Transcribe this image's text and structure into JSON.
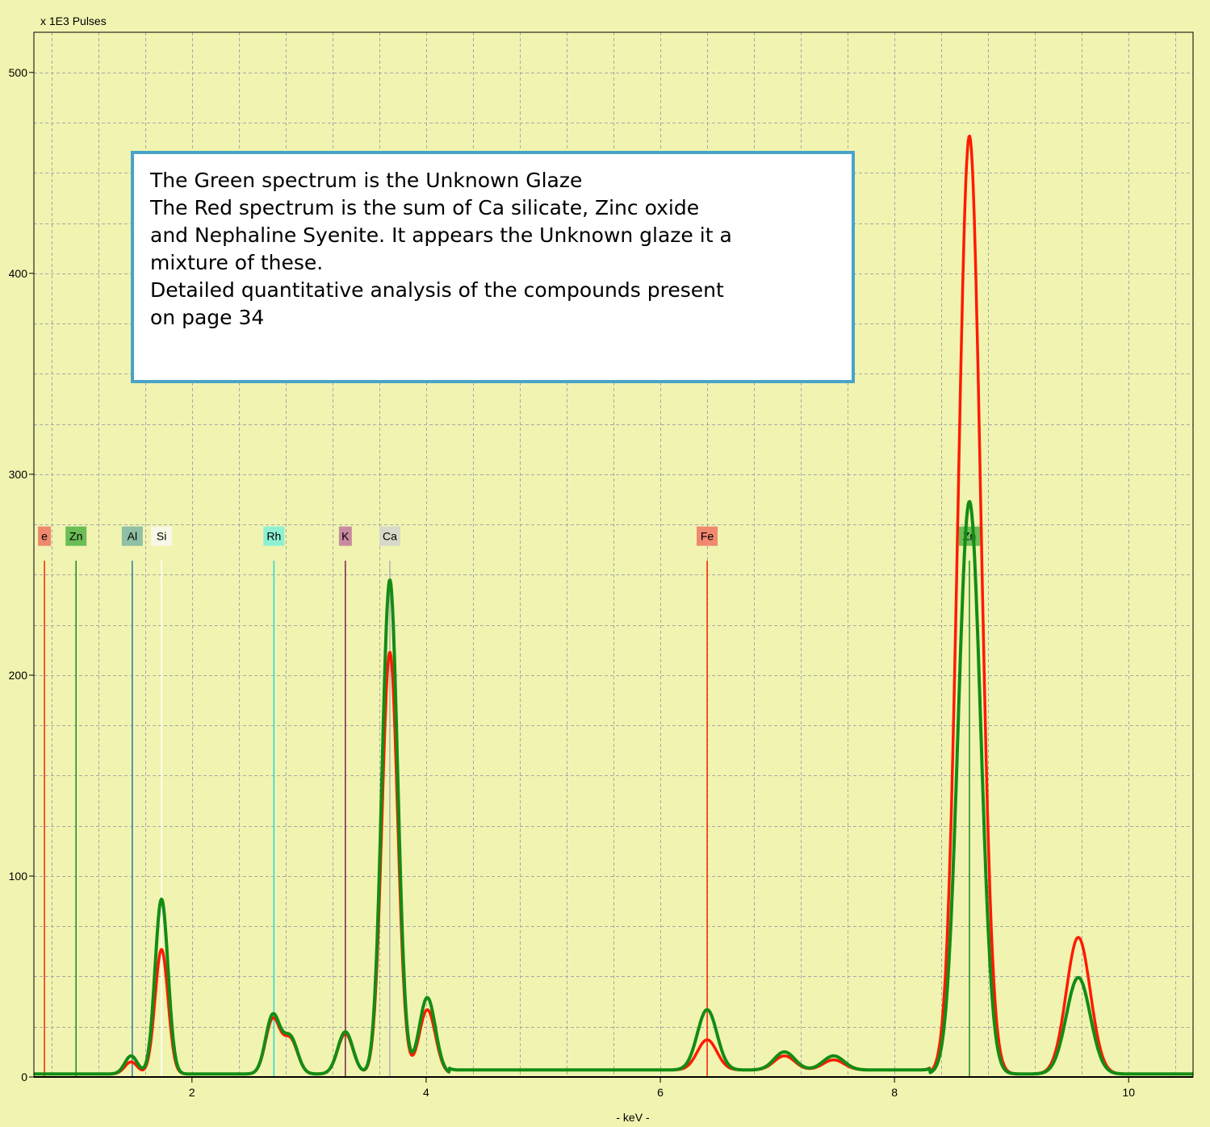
{
  "chart_data": {
    "type": "line",
    "ylabel": "x 1E3 Pulses",
    "xlabel": "- keV -",
    "xlim": [
      0.65,
      10.55
    ],
    "ylim": [
      0,
      520
    ],
    "x_ticks": [
      2,
      4,
      6,
      8,
      10
    ],
    "y_ticks": [
      0,
      100,
      200,
      300,
      400,
      500
    ],
    "grid": true,
    "colors": {
      "background": "#f0f4b0",
      "grid": "#a8a8a8",
      "red_series": "#ff1a00",
      "green_series": "#148c14"
    },
    "series": [
      {
        "color": "#ff1a00",
        "peaks": [
          [
            1.48,
            6
          ],
          [
            1.74,
            62
          ],
          [
            2.69,
            27
          ],
          [
            2.84,
            17
          ],
          [
            3.31,
            20
          ],
          [
            3.69,
            210
          ],
          [
            4.01,
            32
          ],
          [
            6.4,
            15
          ],
          [
            7.06,
            7
          ],
          [
            7.48,
            5
          ],
          [
            8.64,
            467
          ],
          [
            9.57,
            68
          ]
        ]
      },
      {
        "color": "#148c14",
        "peaks": [
          [
            1.48,
            9
          ],
          [
            1.74,
            87
          ],
          [
            2.69,
            29
          ],
          [
            2.84,
            18
          ],
          [
            3.31,
            21
          ],
          [
            3.69,
            246
          ],
          [
            4.01,
            38
          ],
          [
            6.4,
            30
          ],
          [
            7.06,
            9
          ],
          [
            7.48,
            7
          ],
          [
            8.64,
            285
          ],
          [
            9.57,
            48
          ]
        ]
      }
    ],
    "element_markers": [
      {
        "label": "e",
        "x": 0.74,
        "color": "#ff2000",
        "tag": "#f08870"
      },
      {
        "label": "Zn",
        "x": 1.01,
        "color": "#1a8a1a",
        "tag": "#6cbd56"
      },
      {
        "label": "Al",
        "x": 1.49,
        "color": "#2a7aa0",
        "tag": "#8fbfa4"
      },
      {
        "label": "Si",
        "x": 1.74,
        "color": "#ffffff",
        "tag": "#f8f8e6"
      },
      {
        "label": "Rh",
        "x": 2.7,
        "color": "#28d8d0",
        "tag": "#8ef0d2"
      },
      {
        "label": "K",
        "x": 3.31,
        "color": "#7a2050",
        "tag": "#c88aa0"
      },
      {
        "label": "Ca",
        "x": 3.69,
        "color": "#b0b0b0",
        "tag": "#d8d8c8"
      },
      {
        "label": "Fe",
        "x": 6.4,
        "color": "#ff2000",
        "tag": "#f08870"
      },
      {
        "label": "Zn",
        "x": 8.64,
        "color": "#1a8a1a",
        "tag": "#6cbd56"
      }
    ]
  },
  "note": {
    "lines": [
      "The Green spectrum is the Unknown Glaze",
      "The Red spectrum is the sum of Ca silicate, Zinc oxide",
      "and Nephaline Syenite. It appears the Unknown glaze it a",
      "mixture of these.",
      "Detailed quantitative analysis of the compounds present",
      "on  page 34"
    ]
  }
}
